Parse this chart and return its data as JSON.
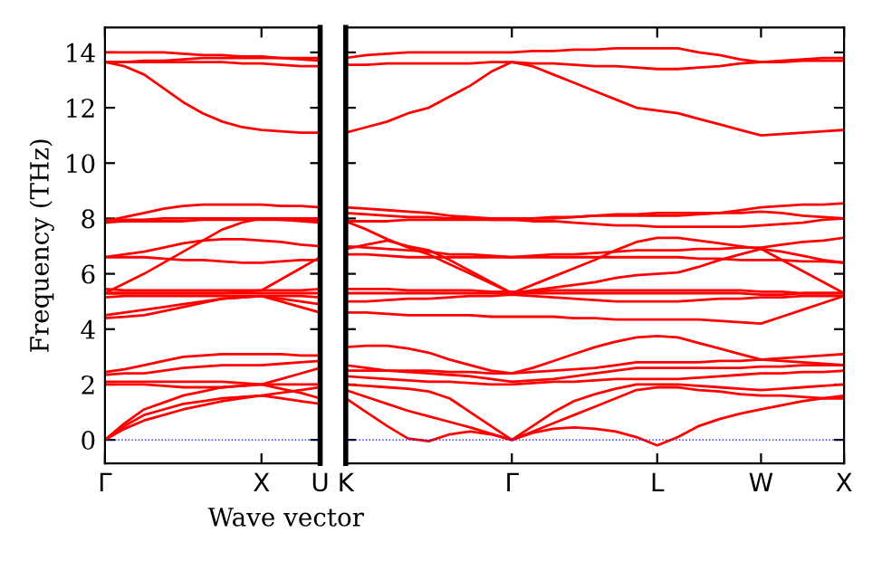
{
  "chart_data": [
    {
      "type": "line",
      "ylabel": "Frequency (THz)",
      "categories": [
        "Γ",
        null,
        null,
        null,
        null,
        null,
        null,
        null,
        "X",
        null,
        null,
        "U"
      ],
      "ylim": [
        -0.85,
        14.9
      ],
      "yticks": [
        0,
        2,
        4,
        6,
        8,
        10,
        12,
        14
      ],
      "grid": false,
      "legend": false,
      "ref_lines": [
        {
          "axis": "y",
          "value": 0,
          "color": "#0000ff",
          "line_style": "dotted"
        }
      ],
      "series": [
        {
          "color": "#ff0000",
          "values": [
            0,
            0.4,
            0.7,
            0.9,
            1.1,
            1.25,
            1.4,
            1.5,
            1.6,
            1.5,
            1.4,
            1.3
          ]
        },
        {
          "color": "#ff0000",
          "values": [
            0,
            0.5,
            0.9,
            1.1,
            1.3,
            1.4,
            1.5,
            1.55,
            1.6,
            1.7,
            1.8,
            1.9
          ]
        },
        {
          "color": "#ff0000",
          "values": [
            0,
            0.6,
            1.1,
            1.35,
            1.6,
            1.75,
            1.9,
            1.95,
            2.0,
            2.2,
            2.4,
            2.6
          ]
        },
        {
          "color": "#ff0000",
          "values": [
            2.0,
            2.0,
            2.0,
            1.95,
            1.9,
            1.9,
            1.9,
            1.95,
            2.0,
            1.85,
            1.7,
            1.5
          ]
        },
        {
          "color": "#ff0000",
          "values": [
            2.1,
            2.1,
            2.1,
            2.1,
            2.1,
            2.1,
            2.1,
            2.05,
            2.0,
            2.0,
            2.0,
            2.0
          ]
        },
        {
          "color": "#ff0000",
          "values": [
            2.35,
            2.4,
            2.4,
            2.5,
            2.6,
            2.65,
            2.7,
            2.7,
            2.7,
            2.75,
            2.8,
            2.85
          ]
        },
        {
          "color": "#ff0000",
          "values": [
            2.45,
            2.55,
            2.7,
            2.85,
            3.0,
            3.05,
            3.1,
            3.1,
            3.1,
            3.1,
            3.05,
            3.05
          ]
        },
        {
          "color": "#ff0000",
          "values": [
            4.4,
            4.45,
            4.5,
            4.65,
            4.8,
            4.95,
            5.1,
            5.15,
            5.2,
            5.0,
            4.8,
            4.6
          ]
        },
        {
          "color": "#ff0000",
          "values": [
            4.5,
            4.6,
            4.7,
            4.8,
            4.9,
            5.0,
            5.1,
            5.15,
            5.2,
            5.1,
            5.0,
            4.9
          ]
        },
        {
          "color": "#ff0000",
          "values": [
            5.15,
            5.2,
            5.2,
            5.2,
            5.2,
            5.2,
            5.2,
            5.2,
            5.2,
            5.2,
            5.2,
            5.15
          ]
        },
        {
          "color": "#ff0000",
          "values": [
            5.3,
            5.3,
            5.3,
            5.3,
            5.3,
            5.3,
            5.3,
            5.3,
            5.3,
            5.3,
            5.3,
            5.3
          ]
        },
        {
          "color": "#ff0000",
          "values": [
            5.45,
            5.4,
            5.4,
            5.4,
            5.4,
            5.4,
            5.4,
            5.4,
            5.4,
            5.4,
            5.4,
            5.45
          ]
        },
        {
          "color": "#ff0000",
          "values": [
            5.3,
            5.65,
            6.0,
            6.4,
            6.8,
            7.2,
            7.6,
            7.85,
            8.0,
            7.95,
            7.95,
            7.9
          ]
        },
        {
          "color": "#ff0000",
          "values": [
            5.3,
            5.3,
            5.3,
            5.3,
            5.3,
            5.3,
            5.3,
            5.35,
            5.4,
            5.8,
            6.2,
            6.6
          ]
        },
        {
          "color": "#ff0000",
          "values": [
            6.6,
            6.6,
            6.6,
            6.55,
            6.5,
            6.5,
            6.45,
            6.4,
            6.4,
            6.45,
            6.5,
            6.5
          ]
        },
        {
          "color": "#ff0000",
          "values": [
            6.6,
            6.7,
            6.8,
            6.95,
            7.1,
            7.2,
            7.25,
            7.25,
            7.2,
            7.15,
            7.05,
            7.0
          ]
        },
        {
          "color": "#ff0000",
          "values": [
            7.85,
            7.9,
            7.9,
            7.9,
            7.9,
            7.95,
            7.95,
            7.95,
            7.95,
            7.95,
            7.9,
            7.85
          ]
        },
        {
          "color": "#ff0000",
          "values": [
            7.95,
            7.95,
            7.95,
            8.0,
            8.0,
            8.0,
            8.0,
            8.0,
            8.0,
            8.0,
            8.0,
            8.0
          ]
        },
        {
          "color": "#ff0000",
          "values": [
            7.9,
            8.05,
            8.2,
            8.35,
            8.45,
            8.5,
            8.5,
            8.5,
            8.5,
            8.45,
            8.45,
            8.4
          ]
        },
        {
          "color": "#ff0000",
          "values": [
            13.65,
            13.5,
            13.2,
            12.7,
            12.2,
            11.8,
            11.5,
            11.3,
            11.2,
            11.15,
            11.1,
            11.1
          ]
        },
        {
          "color": "#ff0000",
          "values": [
            13.65,
            13.65,
            13.65,
            13.65,
            13.65,
            13.65,
            13.65,
            13.6,
            13.6,
            13.55,
            13.5,
            13.5
          ]
        },
        {
          "color": "#ff0000",
          "values": [
            13.65,
            13.65,
            13.7,
            13.7,
            13.75,
            13.8,
            13.8,
            13.8,
            13.8,
            13.8,
            13.8,
            13.8
          ]
        },
        {
          "color": "#ff0000",
          "values": [
            14.0,
            14.0,
            14.0,
            14.0,
            13.95,
            13.9,
            13.9,
            13.85,
            13.85,
            13.8,
            13.75,
            13.7
          ]
        }
      ]
    },
    {
      "type": "line",
      "xlabel": "Wave vector",
      "categories": [
        "K",
        null,
        null,
        null,
        null,
        null,
        null,
        null,
        "Γ",
        null,
        null,
        null,
        null,
        null,
        null,
        "L",
        null,
        null,
        null,
        null,
        "W",
        null,
        null,
        null,
        "X"
      ],
      "ylim": [
        -0.85,
        14.9
      ],
      "yticks": [
        {
          "value": 0,
          "label": null
        },
        {
          "value": 2,
          "label": null
        },
        {
          "value": 4,
          "label": null
        },
        {
          "value": 6,
          "label": null
        },
        {
          "value": 8,
          "label": null
        },
        {
          "value": 10,
          "label": null
        },
        {
          "value": 12,
          "label": null
        },
        {
          "value": 14,
          "label": null
        }
      ],
      "tick_labels": "x",
      "grid": false,
      "legend": false,
      "ref_lines": [
        {
          "axis": "y",
          "value": 0,
          "color": "#0000ff",
          "line_style": "dotted"
        }
      ],
      "series": [
        {
          "color": "#ff0000",
          "values": [
            1.5,
            1.0,
            0.5,
            0.05,
            -0.05,
            0.2,
            0.3,
            0.2,
            0,
            0.25,
            0.4,
            0.45,
            0.4,
            0.3,
            0.1,
            -0.2,
            0.1,
            0.5,
            0.75,
            0.95,
            1.1,
            1.25,
            1.4,
            1.5,
            1.6
          ]
        },
        {
          "color": "#ff0000",
          "values": [
            1.8,
            1.55,
            1.3,
            1.05,
            0.85,
            0.65,
            0.45,
            0.22,
            0,
            0.3,
            0.6,
            0.9,
            1.2,
            1.5,
            1.8,
            1.9,
            1.9,
            1.8,
            1.75,
            1.65,
            1.6,
            1.6,
            1.55,
            1.5,
            1.5
          ]
        },
        {
          "color": "#ff0000",
          "values": [
            2.0,
            1.95,
            1.9,
            1.85,
            1.75,
            1.5,
            1.0,
            0.5,
            0,
            0.5,
            1.0,
            1.4,
            1.65,
            1.85,
            2.0,
            2.0,
            2.0,
            1.95,
            1.9,
            1.85,
            1.8,
            1.85,
            1.9,
            1.95,
            2.0
          ]
        },
        {
          "color": "#ff0000",
          "values": [
            2.3,
            2.25,
            2.2,
            2.15,
            2.1,
            2.1,
            2.05,
            2.0,
            2.0,
            2.05,
            2.1,
            2.1,
            2.15,
            2.2,
            2.2,
            2.2,
            2.2,
            2.25,
            2.3,
            2.35,
            2.4,
            2.4,
            2.45,
            2.45,
            2.5
          ]
        },
        {
          "color": "#ff0000",
          "values": [
            2.7,
            2.6,
            2.5,
            2.45,
            2.4,
            2.35,
            2.3,
            2.2,
            2.1,
            2.15,
            2.2,
            2.3,
            2.4,
            2.5,
            2.6,
            2.6,
            2.6,
            2.6,
            2.6,
            2.6,
            2.65,
            2.65,
            2.7,
            2.7,
            2.7
          ]
        },
        {
          "color": "#ff0000",
          "values": [
            3.35,
            3.4,
            3.4,
            3.3,
            3.15,
            2.9,
            2.7,
            2.5,
            2.4,
            2.6,
            2.85,
            3.1,
            3.35,
            3.55,
            3.7,
            3.75,
            3.7,
            3.5,
            3.3,
            3.1,
            2.9,
            2.95,
            3.0,
            3.05,
            3.1
          ]
        },
        {
          "color": "#ff0000",
          "values": [
            2.5,
            2.5,
            2.5,
            2.5,
            2.5,
            2.45,
            2.45,
            2.4,
            2.4,
            2.45,
            2.5,
            2.55,
            2.6,
            2.7,
            2.8,
            2.8,
            2.8,
            2.8,
            2.85,
            2.85,
            2.9,
            2.85,
            2.8,
            2.75,
            2.7
          ]
        },
        {
          "color": "#ff0000",
          "values": [
            4.6,
            4.6,
            4.55,
            4.5,
            4.5,
            4.5,
            4.5,
            4.45,
            4.45,
            4.45,
            4.45,
            4.4,
            4.4,
            4.35,
            4.35,
            4.35,
            4.35,
            4.35,
            4.3,
            4.25,
            4.2,
            4.45,
            4.7,
            4.95,
            5.2
          ]
        },
        {
          "color": "#ff0000",
          "values": [
            5.0,
            5.0,
            5.05,
            5.1,
            5.1,
            5.15,
            5.2,
            5.2,
            5.25,
            5.2,
            5.15,
            5.1,
            5.05,
            5.0,
            5.0,
            5.0,
            5.0,
            5.05,
            5.1,
            5.1,
            5.15,
            5.15,
            5.2,
            5.2,
            5.2
          ]
        },
        {
          "color": "#ff0000",
          "values": [
            5.3,
            5.3,
            5.3,
            5.3,
            5.3,
            5.3,
            5.3,
            5.3,
            5.3,
            5.3,
            5.3,
            5.3,
            5.3,
            5.3,
            5.3,
            5.3,
            5.3,
            5.3,
            5.3,
            5.3,
            5.25,
            5.25,
            5.3,
            5.3,
            5.3
          ]
        },
        {
          "color": "#ff0000",
          "values": [
            5.45,
            5.45,
            5.45,
            5.4,
            5.4,
            5.4,
            5.4,
            5.35,
            5.35,
            5.35,
            5.4,
            5.4,
            5.4,
            5.4,
            5.4,
            5.4,
            5.4,
            5.4,
            5.4,
            5.4,
            5.35,
            5.35,
            5.3,
            5.3,
            5.3
          ]
        },
        {
          "color": "#ff0000",
          "values": [
            6.9,
            7.05,
            7.2,
            7.0,
            6.85,
            6.5,
            6.1,
            5.7,
            5.3,
            5.6,
            5.9,
            6.2,
            6.5,
            6.85,
            7.15,
            7.3,
            7.3,
            7.2,
            7.1,
            7.0,
            6.9,
            6.5,
            6.1,
            5.7,
            5.3
          ]
        },
        {
          "color": "#ff0000",
          "values": [
            7.9,
            7.6,
            7.25,
            6.95,
            6.7,
            6.35,
            6.0,
            5.65,
            5.3,
            5.4,
            5.5,
            5.6,
            5.7,
            5.85,
            5.95,
            6.0,
            6.05,
            6.25,
            6.5,
            6.7,
            6.9,
            6.8,
            6.65,
            6.5,
            6.4
          ]
        },
        {
          "color": "#ff0000",
          "values": [
            6.7,
            6.7,
            6.65,
            6.6,
            6.6,
            6.6,
            6.6,
            6.6,
            6.6,
            6.6,
            6.6,
            6.6,
            6.6,
            6.6,
            6.6,
            6.6,
            6.6,
            6.55,
            6.55,
            6.5,
            6.5,
            6.5,
            6.45,
            6.45,
            6.4
          ]
        },
        {
          "color": "#ff0000",
          "values": [
            7.0,
            6.95,
            6.9,
            6.85,
            6.8,
            6.7,
            6.7,
            6.65,
            6.6,
            6.65,
            6.7,
            6.7,
            6.75,
            6.8,
            6.85,
            6.85,
            6.85,
            6.9,
            6.9,
            6.95,
            6.95,
            7.05,
            7.15,
            7.2,
            7.3
          ]
        },
        {
          "color": "#ff0000",
          "values": [
            7.9,
            7.9,
            7.9,
            7.95,
            7.95,
            7.95,
            7.95,
            7.95,
            7.95,
            7.9,
            7.9,
            7.85,
            7.8,
            7.75,
            7.75,
            7.7,
            7.7,
            7.7,
            7.7,
            7.7,
            7.75,
            7.8,
            7.85,
            7.95,
            8.0
          ]
        },
        {
          "color": "#ff0000",
          "values": [
            8.2,
            8.15,
            8.1,
            8.05,
            8.05,
            8.0,
            8.0,
            7.95,
            7.95,
            8.0,
            8.0,
            8.05,
            8.1,
            8.15,
            8.15,
            8.2,
            8.2,
            8.2,
            8.2,
            8.2,
            8.25,
            8.2,
            8.1,
            8.05,
            8.0
          ]
        },
        {
          "color": "#ff0000",
          "values": [
            8.4,
            8.35,
            8.3,
            8.25,
            8.2,
            8.1,
            8.05,
            8.0,
            8.0,
            8.0,
            8.05,
            8.05,
            8.1,
            8.1,
            8.1,
            8.1,
            8.1,
            8.15,
            8.2,
            8.3,
            8.4,
            8.45,
            8.5,
            8.5,
            8.55
          ]
        },
        {
          "color": "#ff0000",
          "values": [
            11.1,
            11.3,
            11.5,
            11.8,
            12.0,
            12.4,
            12.8,
            13.3,
            13.65,
            13.5,
            13.2,
            12.9,
            12.6,
            12.3,
            12.0,
            11.9,
            11.8,
            11.6,
            11.4,
            11.2,
            11.0,
            11.05,
            11.1,
            11.15,
            11.2
          ]
        },
        {
          "color": "#ff0000",
          "values": [
            13.55,
            13.55,
            13.6,
            13.6,
            13.6,
            13.6,
            13.6,
            13.65,
            13.65,
            13.6,
            13.6,
            13.55,
            13.5,
            13.5,
            13.45,
            13.4,
            13.4,
            13.45,
            13.5,
            13.6,
            13.65,
            13.65,
            13.7,
            13.7,
            13.7
          ]
        },
        {
          "color": "#ff0000",
          "values": [
            13.8,
            13.9,
            13.95,
            14.0,
            14.0,
            14.0,
            14.0,
            14.0,
            14.0,
            14.05,
            14.05,
            14.1,
            14.1,
            14.15,
            14.15,
            14.15,
            14.15,
            14.0,
            13.9,
            13.75,
            13.65,
            13.7,
            13.75,
            13.8,
            13.8
          ]
        }
      ]
    }
  ]
}
